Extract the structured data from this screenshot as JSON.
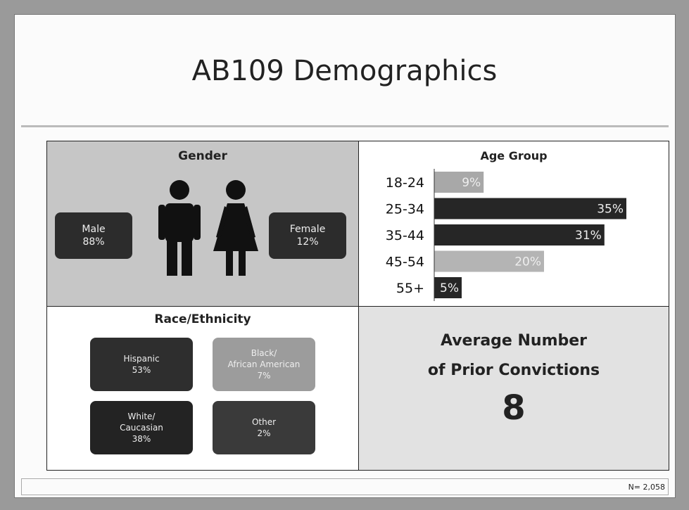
{
  "title": "AB109 Demographics",
  "gender": {
    "title": "Gender",
    "male": {
      "label": "Male",
      "value": "88%"
    },
    "female": {
      "label": "Female",
      "value": "12%"
    }
  },
  "chart_data": {
    "type": "bar",
    "title": "Age Group",
    "categories": [
      "18-24",
      "25-34",
      "35-44",
      "45-54",
      "55+"
    ],
    "values": [
      9,
      35,
      31,
      20,
      5
    ],
    "value_labels": [
      "9%",
      "35%",
      "31%",
      "20%",
      "5%"
    ],
    "colors": [
      "#a8a8a8",
      "#262626",
      "#262626",
      "#b4b4b4",
      "#262626"
    ]
  },
  "race": {
    "title": "Race/Ethnicity",
    "groups": [
      {
        "lines": [
          "Hispanic",
          "53%"
        ],
        "color": "#2e2e2e"
      },
      {
        "lines": [
          "Black/",
          "African American",
          "7%"
        ],
        "color": "#9c9c9c"
      },
      {
        "lines": [
          "White/",
          "Caucasian",
          "38%"
        ],
        "color": "#232323"
      },
      {
        "lines": [
          "Other",
          "2%"
        ],
        "color": "#3a3a3a"
      }
    ]
  },
  "convictions": {
    "lines": [
      "Average Number",
      "of Prior Convictions"
    ],
    "value": "8"
  },
  "footer": "N= 2,058"
}
